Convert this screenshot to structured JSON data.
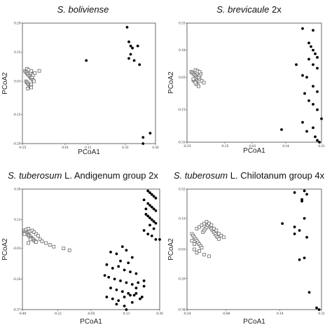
{
  "chart_data": [
    {
      "type": "scatter",
      "title_italic": "S. boliviense",
      "title_rest": "",
      "xlabel": "PCoA1",
      "ylabel": "PCoA2",
      "xlim": [
        -0.25,
        0.5
      ],
      "ylim": [
        -0.29,
        0.29
      ],
      "xticks": [
        {
          "v": -0.25,
          "t": "-0.25"
        },
        {
          "v": -0.01,
          "t": "-0.01"
        },
        {
          "v": 0.12,
          "t": "0.12"
        },
        {
          "v": 0.33,
          "t": "0.33"
        },
        {
          "v": 0.5,
          "t": "0.50"
        }
      ],
      "yticks": [
        {
          "v": 0.29,
          "t": "0.29"
        },
        {
          "v": 0.15,
          "t": "0.15"
        },
        {
          "v": 0.01,
          "t": "0.01"
        },
        {
          "v": -0.15,
          "t": "-0.15"
        },
        {
          "v": -0.29,
          "t": "-0.29"
        }
      ],
      "series": [
        {
          "marker": "square",
          "x": [
            -0.235,
            -0.23,
            -0.225,
            -0.22,
            -0.215,
            -0.21,
            -0.205,
            -0.2,
            -0.195,
            -0.19,
            -0.23,
            -0.225,
            -0.22,
            -0.215,
            -0.21,
            -0.205,
            -0.2,
            -0.195,
            -0.19,
            -0.185,
            -0.225,
            -0.215,
            -0.2,
            -0.19,
            -0.18,
            -0.155,
            -0.22,
            -0.2
          ],
          "y": [
            0.06,
            0.055,
            0.05,
            0.045,
            0.04,
            0.035,
            0.03,
            0.025,
            0.02,
            0.015,
            0.01,
            0.005,
            0.0,
            -0.005,
            -0.01,
            -0.015,
            -0.02,
            0.03,
            0.045,
            0.01,
            0.07,
            0.065,
            0.06,
            0.04,
            0.05,
            0.06,
            -0.025,
            -0.005
          ]
        },
        {
          "marker": "circle",
          "x": [
            0.11,
            0.34,
            0.35,
            0.36,
            0.37,
            0.4,
            0.35,
            0.38,
            0.41,
            0.43,
            0.47,
            0.43,
            0.36
          ],
          "y": [
            0.11,
            0.27,
            0.2,
            0.18,
            0.17,
            0.18,
            0.12,
            0.11,
            0.09,
            -0.26,
            -0.24,
            -0.29,
            0.14
          ]
        }
      ]
    },
    {
      "type": "scatter",
      "title_italic": "S. brevicaule",
      "title_rest": " 2x",
      "xlabel": "PCoA1",
      "ylabel": "PCoA2",
      "xlim": [
        -0.33,
        0.31
      ],
      "ylim": [
        -0.33,
        0.33
      ],
      "xticks": [
        {
          "v": -0.33,
          "t": "-0.33"
        },
        {
          "v": -0.15,
          "t": "-0.15"
        },
        {
          "v": -0.02,
          "t": "-0.02"
        },
        {
          "v": 0.14,
          "t": "0.14"
        },
        {
          "v": 0.31,
          "t": "0.31"
        }
      ],
      "yticks": [
        {
          "v": 0.33,
          "t": "0.33"
        },
        {
          "v": 0.18,
          "t": "0.18"
        },
        {
          "v": 0.03,
          "t": "0.03"
        },
        {
          "v": -0.15,
          "t": "-0.15"
        },
        {
          "v": -0.33,
          "t": "-0.33"
        }
      ],
      "series": [
        {
          "marker": "square",
          "x": [
            -0.31,
            -0.305,
            -0.3,
            -0.295,
            -0.29,
            -0.285,
            -0.28,
            -0.275,
            -0.27,
            -0.3,
            -0.295,
            -0.29,
            -0.285,
            -0.28,
            -0.275,
            -0.27,
            -0.265,
            -0.29,
            -0.28,
            -0.27,
            -0.26,
            -0.25,
            -0.3,
            -0.285,
            -0.275,
            -0.29
          ],
          "y": [
            0.06,
            0.055,
            0.05,
            0.045,
            0.04,
            0.035,
            0.03,
            0.025,
            0.02,
            0.015,
            0.01,
            0.005,
            0.0,
            -0.005,
            0.03,
            0.04,
            0.05,
            0.07,
            0.065,
            0.06,
            0.01,
            0.0,
            0.02,
            -0.01,
            -0.02,
            0.0
          ]
        },
        {
          "marker": "circle",
          "x": [
            0.22,
            0.27,
            0.25,
            0.26,
            0.27,
            0.28,
            0.29,
            0.25,
            0.27,
            0.29,
            0.19,
            0.22,
            0.24,
            0.27,
            0.29,
            0.23,
            0.25,
            0.27,
            0.29,
            0.31,
            0.12,
            0.22,
            0.24,
            0.27,
            0.28,
            0.29,
            0.3
          ],
          "y": [
            0.3,
            0.29,
            0.22,
            0.2,
            0.18,
            0.16,
            0.14,
            0.13,
            0.1,
            0.08,
            0.1,
            0.04,
            0.03,
            -0.02,
            -0.05,
            -0.06,
            -0.1,
            -0.12,
            -0.15,
            -0.2,
            -0.26,
            -0.22,
            -0.27,
            -0.25,
            -0.3,
            -0.32,
            -0.33
          ]
        }
      ]
    },
    {
      "type": "scatter",
      "title_italic": "S. tuberosum",
      "title_rest": " L. Andigenum group 2x",
      "xlabel": "PCoA1",
      "ylabel": "PCoA2",
      "xlim": [
        -0.4,
        0.3
      ],
      "ylim": [
        -0.37,
        0.3
      ],
      "xticks": [
        {
          "v": -0.4,
          "t": "-0.40"
        },
        {
          "v": -0.22,
          "t": "-0.22"
        },
        {
          "v": -0.05,
          "t": "-0.05"
        },
        {
          "v": 0.13,
          "t": "0.13"
        },
        {
          "v": 0.3,
          "t": "0.30"
        }
      ],
      "yticks": [
        {
          "v": 0.3,
          "t": "0.30"
        },
        {
          "v": 0.13,
          "t": "0.13"
        },
        {
          "v": -0.03,
          "t": "-0.03"
        },
        {
          "v": -0.2,
          "t": "-0.20"
        },
        {
          "v": -0.37,
          "t": "-0.37"
        }
      ],
      "series": [
        {
          "marker": "square",
          "x": [
            -0.39,
            -0.385,
            -0.38,
            -0.375,
            -0.37,
            -0.365,
            -0.36,
            -0.355,
            -0.35,
            -0.345,
            -0.34,
            -0.335,
            -0.33,
            -0.38,
            -0.37,
            -0.36,
            -0.35,
            -0.34,
            -0.33,
            -0.32,
            -0.31,
            -0.3,
            -0.28,
            -0.26,
            -0.24,
            -0.37,
            -0.36,
            -0.19,
            -0.16,
            -0.39
          ],
          "y": [
            0.07,
            0.06,
            0.055,
            0.05,
            0.045,
            0.04,
            0.035,
            0.03,
            0.025,
            0.02,
            0.015,
            0.01,
            0.005,
            0.075,
            0.08,
            0.065,
            0.07,
            0.06,
            0.05,
            0.04,
            0.02,
            0.01,
            0.0,
            -0.01,
            -0.02,
            0.0,
            0.02,
            -0.03,
            -0.04,
            0.05
          ]
        },
        {
          "marker": "circle",
          "x": [
            0.24,
            0.25,
            0.26,
            0.27,
            0.28,
            0.24,
            0.25,
            0.26,
            0.27,
            0.28,
            0.23,
            0.24,
            0.25,
            0.26,
            0.27,
            0.28,
            0.22,
            0.23,
            0.25,
            0.27,
            0.22,
            0.24,
            0.26,
            0.28,
            0.3,
            0.05,
            0.08,
            0.11,
            0.13,
            0.16,
            0.03,
            0.06,
            0.09,
            0.12,
            0.15,
            0.18,
            0.02,
            0.04,
            0.07,
            0.1,
            0.13,
            0.16,
            0.19,
            0.22,
            0.05,
            0.08,
            0.11,
            0.14,
            0.17,
            0.03,
            0.06,
            0.09,
            0.12,
            0.15,
            0.18,
            0.21,
            0.08,
            0.12,
            0.16,
            0.2,
            0.1,
            0.14,
            0.18,
            0.22,
            0.13
          ],
          "y": [
            0.29,
            0.28,
            0.27,
            0.26,
            0.25,
            0.22,
            0.21,
            0.2,
            0.19,
            0.18,
            0.16,
            0.15,
            0.14,
            0.13,
            0.12,
            0.11,
            0.24,
            0.19,
            0.1,
            0.08,
            0.07,
            0.05,
            0.04,
            0.02,
            0.02,
            -0.05,
            -0.06,
            -0.02,
            -0.04,
            -0.08,
            -0.12,
            -0.14,
            -0.13,
            -0.15,
            -0.16,
            -0.17,
            -0.18,
            -0.19,
            -0.2,
            -0.21,
            -0.22,
            -0.23,
            -0.22,
            -0.21,
            -0.25,
            -0.26,
            -0.27,
            -0.28,
            -0.29,
            -0.3,
            -0.31,
            -0.32,
            -0.3,
            -0.29,
            -0.28,
            -0.3,
            -0.34,
            -0.35,
            -0.33,
            -0.31,
            -0.1,
            -0.11,
            -0.25,
            -0.24,
            -0.37
          ]
        }
      ]
    },
    {
      "type": "scatter",
      "title_italic": "S. tuberosum",
      "title_rest": " L. Chilotanum group 4x",
      "xlabel": "PCoA1",
      "ylabel": "PCoA2",
      "xlim": [
        -0.24,
        0.31
      ],
      "ylim": [
        -0.38,
        0.32
      ],
      "xticks": [
        {
          "v": -0.24,
          "t": "-0.24"
        },
        {
          "v": -0.08,
          "t": "-0.08"
        },
        {
          "v": 0.14,
          "t": "0.14"
        },
        {
          "v": 0.31,
          "t": "0.31"
        }
      ],
      "yticks": [
        {
          "v": 0.32,
          "t": "0.32"
        },
        {
          "v": 0.15,
          "t": "0.15"
        },
        {
          "v": -0.03,
          "t": "-0.03"
        },
        {
          "v": -0.2,
          "t": "-0.20"
        },
        {
          "v": -0.38,
          "t": "-0.38"
        }
      ],
      "series": [
        {
          "marker": "square",
          "x": [
            -0.22,
            -0.215,
            -0.21,
            -0.205,
            -0.2,
            -0.195,
            -0.19,
            -0.185,
            -0.18,
            -0.175,
            -0.17,
            -0.165,
            -0.16,
            -0.155,
            -0.15,
            -0.145,
            -0.14,
            -0.135,
            -0.13,
            -0.125,
            -0.12,
            -0.115,
            -0.11,
            -0.2,
            -0.19,
            -0.18,
            -0.17,
            -0.16,
            -0.15,
            -0.14,
            -0.13,
            -0.12,
            -0.11,
            -0.1,
            -0.09,
            -0.22,
            -0.21,
            -0.2,
            -0.17,
            -0.15,
            -0.21,
            -0.19
          ],
          "y": [
            0.06,
            0.05,
            0.04,
            0.03,
            0.02,
            0.01,
            0.0,
            -0.01,
            -0.02,
            0.07,
            0.08,
            0.09,
            0.1,
            0.11,
            0.12,
            0.1,
            0.09,
            0.08,
            0.07,
            0.06,
            0.05,
            0.04,
            0.03,
            0.09,
            0.1,
            0.11,
            0.12,
            0.13,
            0.12,
            0.11,
            0.09,
            0.08,
            0.06,
            0.05,
            0.04,
            0.02,
            -0.03,
            -0.05,
            -0.06,
            -0.07,
            0.0,
            -0.04
          ]
        },
        {
          "marker": "circle",
          "x": [
            0.2,
            0.24,
            0.25,
            0.23,
            0.24,
            0.2,
            0.22,
            0.15,
            0.2,
            0.25,
            0.24,
            0.22,
            0.23,
            0.26,
            0.29,
            0.3
          ],
          "y": [
            0.3,
            0.31,
            0.29,
            0.26,
            0.15,
            0.1,
            0.08,
            0.12,
            0.06,
            0.04,
            -0.08,
            -0.09,
            0.25,
            -0.28,
            -0.37,
            -0.38
          ]
        }
      ]
    }
  ]
}
